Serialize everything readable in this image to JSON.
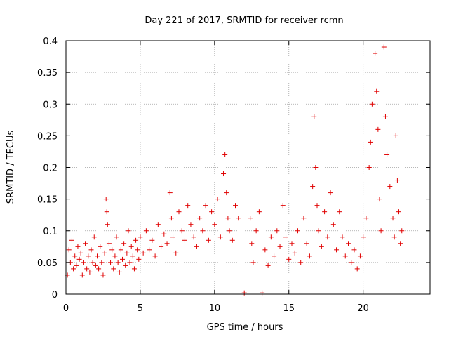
{
  "chart_data": {
    "type": "scatter",
    "title": "Day 221 of 2017, SRMTID for receiver rcmn",
    "xlabel": "GPS time / hours",
    "ylabel": "SRMTID / TECUs",
    "xlim": [
      0,
      24.5
    ],
    "ylim": [
      0,
      0.4
    ],
    "xticks": [
      0,
      5,
      10,
      15,
      20
    ],
    "xtick_labels": [
      "0",
      "5",
      "10",
      "15",
      "20"
    ],
    "yticks": [
      0,
      0.05,
      0.1,
      0.15,
      0.2,
      0.25,
      0.3,
      0.35,
      0.4
    ],
    "ytick_labels": [
      "0",
      "0.05",
      "0.1",
      "0.15",
      "0.2",
      "0.25",
      "0.3",
      "0.35",
      "0.4"
    ],
    "grid": true,
    "marker": "+",
    "color": "#e00000",
    "series": [
      {
        "name": "SRMTID",
        "points": [
          [
            0.1,
            0.03
          ],
          [
            0.2,
            0.07
          ],
          [
            0.3,
            0.05
          ],
          [
            0.4,
            0.085
          ],
          [
            0.5,
            0.04
          ],
          [
            0.6,
            0.06
          ],
          [
            0.7,
            0.045
          ],
          [
            0.8,
            0.075
          ],
          [
            0.9,
            0.055
          ],
          [
            1.0,
            0.065
          ],
          [
            1.1,
            0.03
          ],
          [
            1.2,
            0.05
          ],
          [
            1.3,
            0.08
          ],
          [
            1.4,
            0.04
          ],
          [
            1.5,
            0.06
          ],
          [
            1.6,
            0.035
          ],
          [
            1.7,
            0.07
          ],
          [
            1.8,
            0.05
          ],
          [
            1.9,
            0.09
          ],
          [
            2.0,
            0.045
          ],
          [
            2.1,
            0.06
          ],
          [
            2.2,
            0.04
          ],
          [
            2.3,
            0.075
          ],
          [
            2.4,
            0.05
          ],
          [
            2.5,
            0.03
          ],
          [
            2.6,
            0.065
          ],
          [
            2.7,
            0.15
          ],
          [
            2.75,
            0.13
          ],
          [
            2.8,
            0.11
          ],
          [
            2.9,
            0.08
          ],
          [
            3.0,
            0.05
          ],
          [
            3.1,
            0.07
          ],
          [
            3.2,
            0.04
          ],
          [
            3.3,
            0.06
          ],
          [
            3.4,
            0.09
          ],
          [
            3.5,
            0.05
          ],
          [
            3.6,
            0.035
          ],
          [
            3.7,
            0.07
          ],
          [
            3.8,
            0.055
          ],
          [
            3.9,
            0.08
          ],
          [
            4.0,
            0.045
          ],
          [
            4.1,
            0.065
          ],
          [
            4.2,
            0.1
          ],
          [
            4.3,
            0.05
          ],
          [
            4.4,
            0.075
          ],
          [
            4.5,
            0.06
          ],
          [
            4.6,
            0.04
          ],
          [
            4.7,
            0.085
          ],
          [
            4.8,
            0.07
          ],
          [
            4.9,
            0.055
          ],
          [
            5.0,
            0.09
          ],
          [
            5.2,
            0.065
          ],
          [
            5.4,
            0.1
          ],
          [
            5.6,
            0.07
          ],
          [
            5.8,
            0.085
          ],
          [
            6.0,
            0.06
          ],
          [
            6.2,
            0.11
          ],
          [
            6.4,
            0.075
          ],
          [
            6.6,
            0.095
          ],
          [
            6.8,
            0.08
          ],
          [
            7.0,
            0.16
          ],
          [
            7.1,
            0.12
          ],
          [
            7.2,
            0.09
          ],
          [
            7.4,
            0.065
          ],
          [
            7.6,
            0.13
          ],
          [
            7.8,
            0.1
          ],
          [
            8.0,
            0.085
          ],
          [
            8.2,
            0.14
          ],
          [
            8.4,
            0.11
          ],
          [
            8.6,
            0.09
          ],
          [
            8.8,
            0.075
          ],
          [
            9.0,
            0.12
          ],
          [
            9.2,
            0.1
          ],
          [
            9.4,
            0.14
          ],
          [
            9.6,
            0.085
          ],
          [
            9.8,
            0.13
          ],
          [
            10.0,
            0.11
          ],
          [
            10.2,
            0.15
          ],
          [
            10.4,
            0.09
          ],
          [
            10.6,
            0.19
          ],
          [
            10.7,
            0.22
          ],
          [
            10.8,
            0.16
          ],
          [
            10.9,
            0.12
          ],
          [
            11.0,
            0.1
          ],
          [
            11.2,
            0.085
          ],
          [
            11.4,
            0.14
          ],
          [
            11.6,
            0.12
          ],
          [
            12.0,
            0.002
          ],
          [
            12.4,
            0.12
          ],
          [
            12.5,
            0.08
          ],
          [
            12.6,
            0.05
          ],
          [
            12.8,
            0.1
          ],
          [
            13.0,
            0.13
          ],
          [
            13.2,
            0.002
          ],
          [
            13.4,
            0.07
          ],
          [
            13.6,
            0.045
          ],
          [
            13.8,
            0.09
          ],
          [
            14.0,
            0.06
          ],
          [
            14.2,
            0.1
          ],
          [
            14.4,
            0.075
          ],
          [
            14.6,
            0.14
          ],
          [
            14.8,
            0.09
          ],
          [
            15.0,
            0.055
          ],
          [
            15.2,
            0.08
          ],
          [
            15.4,
            0.065
          ],
          [
            15.6,
            0.1
          ],
          [
            15.8,
            0.05
          ],
          [
            16.0,
            0.12
          ],
          [
            16.2,
            0.08
          ],
          [
            16.4,
            0.06
          ],
          [
            16.6,
            0.17
          ],
          [
            16.7,
            0.28
          ],
          [
            16.8,
            0.2
          ],
          [
            16.9,
            0.14
          ],
          [
            17.0,
            0.1
          ],
          [
            17.2,
            0.075
          ],
          [
            17.4,
            0.13
          ],
          [
            17.6,
            0.09
          ],
          [
            17.8,
            0.16
          ],
          [
            18.0,
            0.11
          ],
          [
            18.2,
            0.07
          ],
          [
            18.4,
            0.13
          ],
          [
            18.6,
            0.09
          ],
          [
            18.8,
            0.06
          ],
          [
            19.0,
            0.08
          ],
          [
            19.2,
            0.05
          ],
          [
            19.4,
            0.07
          ],
          [
            19.6,
            0.04
          ],
          [
            19.8,
            0.06
          ],
          [
            20.0,
            0.09
          ],
          [
            20.2,
            0.12
          ],
          [
            20.4,
            0.2
          ],
          [
            20.5,
            0.24
          ],
          [
            20.6,
            0.3
          ],
          [
            20.8,
            0.38
          ],
          [
            20.9,
            0.32
          ],
          [
            21.0,
            0.26
          ],
          [
            21.1,
            0.15
          ],
          [
            21.2,
            0.1
          ],
          [
            21.4,
            0.39
          ],
          [
            21.5,
            0.28
          ],
          [
            21.6,
            0.22
          ],
          [
            21.8,
            0.17
          ],
          [
            22.0,
            0.12
          ],
          [
            22.1,
            0.09
          ],
          [
            22.2,
            0.25
          ],
          [
            22.3,
            0.18
          ],
          [
            22.4,
            0.13
          ],
          [
            22.5,
            0.08
          ],
          [
            22.6,
            0.1
          ]
        ]
      }
    ]
  }
}
